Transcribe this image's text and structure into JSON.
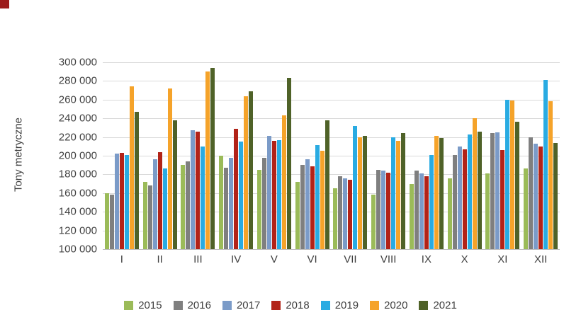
{
  "corner_mark": {
    "color": "#9d1c1c"
  },
  "chart_data": {
    "type": "bar",
    "title": "",
    "xlabel": "",
    "ylabel": "Tony metryczne",
    "ylim": [
      100000,
      300000
    ],
    "ytick_step": 20000,
    "ytick_labels": [
      "100 000",
      "120 000",
      "140 000",
      "160 000",
      "180 000",
      "200 000",
      "220 000",
      "240 000",
      "260 000",
      "280 000",
      "300 000"
    ],
    "grid": true,
    "legend_position": "bottom",
    "categories": [
      "I",
      "II",
      "III",
      "IV",
      "V",
      "VI",
      "VII",
      "VIII",
      "IX",
      "X",
      "XI",
      "XII"
    ],
    "series": [
      {
        "name": "2015",
        "color": "#9bbb59",
        "values": [
          160000,
          172000,
          190000,
          200000,
          185000,
          172000,
          165000,
          158000,
          170000,
          176000,
          181000,
          186000
        ]
      },
      {
        "name": "2016",
        "color": "#7f7f7f",
        "values": [
          158000,
          168000,
          194000,
          187000,
          198000,
          190000,
          178000,
          185000,
          184000,
          201000,
          224000,
          220000
        ]
      },
      {
        "name": "2017",
        "color": "#7b9bc8",
        "values": [
          202000,
          196000,
          227000,
          198000,
          221000,
          196000,
          176000,
          184000,
          181000,
          210000,
          225000,
          213000
        ]
      },
      {
        "name": "2018",
        "color": "#b22318",
        "values": [
          203000,
          204000,
          226000,
          229000,
          216000,
          189000,
          174000,
          182000,
          178000,
          207000,
          206000,
          210000
        ]
      },
      {
        "name": "2019",
        "color": "#29abe2",
        "values": [
          201000,
          186000,
          210000,
          215000,
          217000,
          211000,
          232000,
          220000,
          201000,
          223000,
          260000,
          281000
        ]
      },
      {
        "name": "2020",
        "color": "#f5a32a",
        "values": [
          274000,
          272000,
          290000,
          264000,
          243000,
          205000,
          220000,
          216000,
          221000,
          240000,
          259000,
          258000
        ]
      },
      {
        "name": "2021",
        "color": "#4f6228",
        "values": [
          247000,
          238000,
          294000,
          269000,
          283000,
          238000,
          221000,
          224000,
          219000,
          226000,
          236000,
          214000
        ]
      }
    ]
  }
}
